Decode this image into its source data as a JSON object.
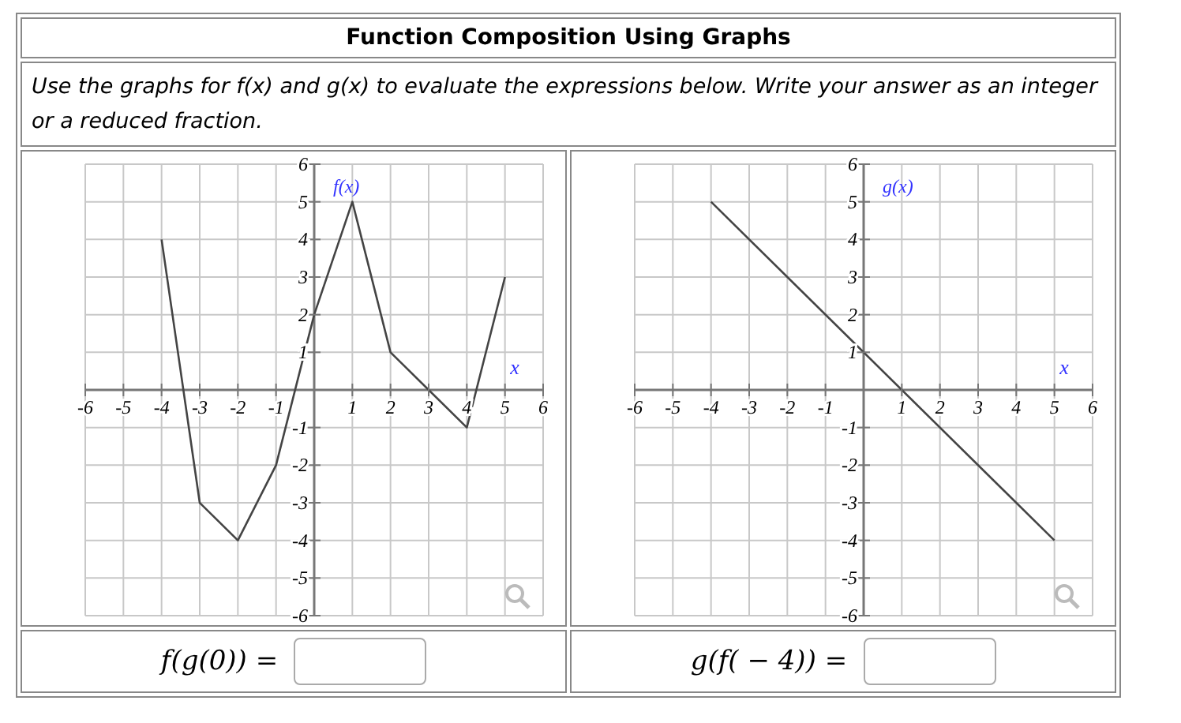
{
  "chart_data": [
    {
      "type": "line",
      "title": "Function Composition Using Graphs",
      "subtitle": "Use the graphs for f(x) and g(x) to evaluate the expressions below. Write your answer as an integer or a reduced fraction.",
      "xlabel": "x",
      "x": [
        -4,
        -3,
        -2,
        -1,
        0,
        1,
        2,
        3,
        4,
        5
      ],
      "series": [
        {
          "name": "f(x)",
          "color": "#444444",
          "values": [
            4,
            -3,
            -4,
            -2,
            2,
            5,
            1,
            0,
            -1,
            3
          ]
        }
      ],
      "xlim": [
        -6,
        6
      ],
      "ylim": [
        -6,
        6
      ],
      "xticks": [
        -6,
        -5,
        -4,
        -3,
        -2,
        -1,
        1,
        2,
        3,
        4,
        5,
        6
      ],
      "yticks": [
        -6,
        -5,
        -4,
        -3,
        -2,
        -1,
        1,
        2,
        3,
        4,
        5,
        6
      ],
      "grid": true,
      "marker": "none",
      "line_style": "solid",
      "annotations": [
        "f(g(0)) ="
      ]
    },
    {
      "type": "line",
      "xlabel": "x",
      "x": [
        -4,
        5
      ],
      "series": [
        {
          "name": "g(x)",
          "color": "#444444",
          "values": [
            5,
            -4
          ]
        }
      ],
      "xlim": [
        -6,
        6
      ],
      "ylim": [
        -6,
        6
      ],
      "xticks": [
        -6,
        -5,
        -4,
        -3,
        -2,
        -1,
        1,
        2,
        3,
        4,
        5,
        6
      ],
      "yticks": [
        -6,
        -5,
        -4,
        -3,
        -2,
        -1,
        1,
        2,
        3,
        4,
        5,
        6
      ],
      "grid": true,
      "marker": "none",
      "line_style": "solid",
      "annotations": [
        "g(f( − 4)) ="
      ]
    }
  ]
}
